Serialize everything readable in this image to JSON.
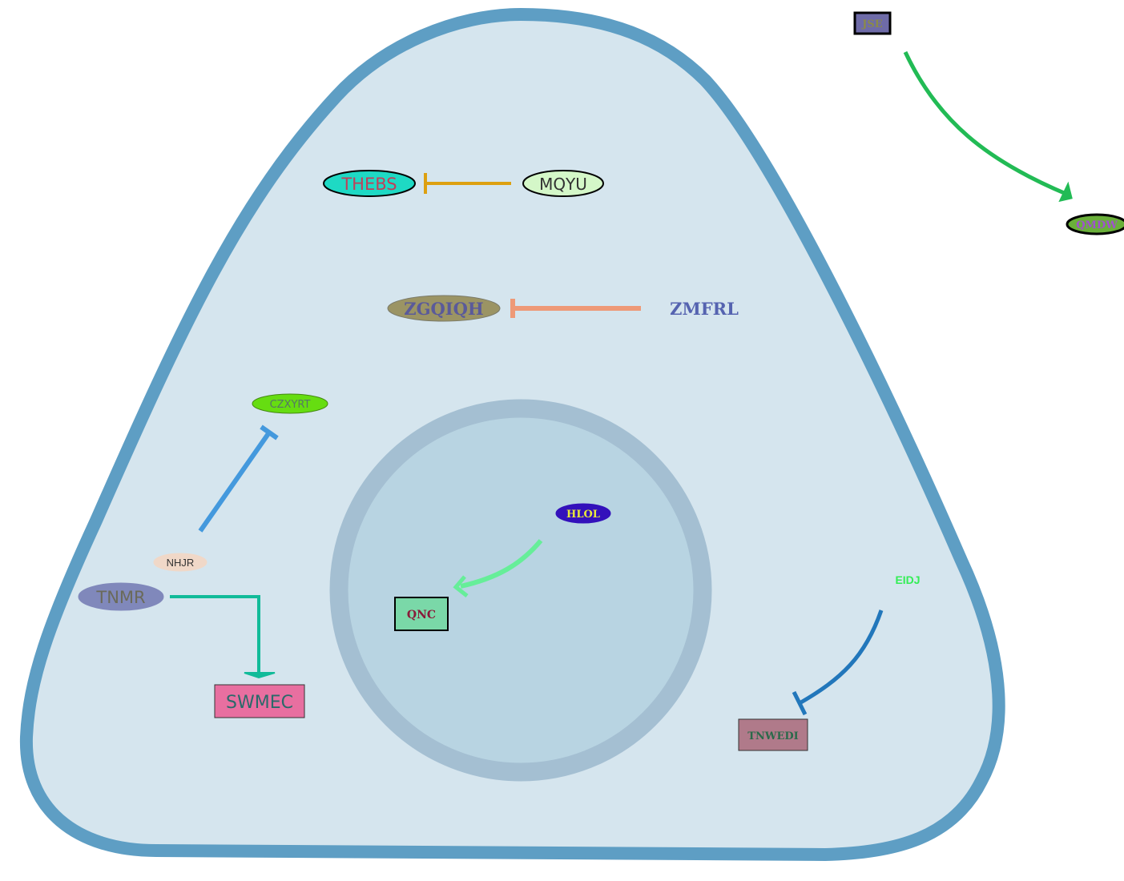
{
  "nodes": {
    "jse": {
      "label": "JSE",
      "shape": "rect",
      "fill": "#6E6BA8",
      "stroke": "#000000",
      "text_color": "#8A8A4A"
    },
    "qmdw": {
      "label": "QMDW",
      "shape": "ellipse",
      "fill": "#6AAF3A",
      "stroke": "#000000",
      "text_color": "#A050D0"
    },
    "thebs": {
      "label": "THEBS",
      "shape": "ellipse",
      "fill": "#1ED9C4",
      "stroke": "#000000",
      "text_color": "#C0405A"
    },
    "mqyu": {
      "label": "MQYU",
      "shape": "ellipse",
      "fill": "#D4F7C8",
      "stroke": "#000000",
      "text_color": "#333333"
    },
    "zgqiqh": {
      "label": "ZGQIQH",
      "shape": "ellipse",
      "fill": "#9B9464",
      "stroke": "#7A7A6A",
      "text_color": "#5A5A9A"
    },
    "zmfrl": {
      "label": "ZMFRL",
      "shape": "text",
      "text_color": "#5563B0"
    },
    "czxyrt": {
      "label": "CZXYRT",
      "shape": "ellipse",
      "fill": "#66DD11",
      "stroke": "#448811",
      "text_color": "#557766"
    },
    "hlol": {
      "label": "HLOL",
      "shape": "ellipse",
      "fill": "#3311BB",
      "stroke": "#3311BB",
      "text_color": "#E8E83A"
    },
    "qnc": {
      "label": "QNC",
      "shape": "rect",
      "fill": "#7AD8A8",
      "stroke": "#000000",
      "text_color": "#8A1A3A"
    },
    "nhjr": {
      "label": "NHJR",
      "shape": "ellipse",
      "fill": "#F0D8C8",
      "stroke": "#F0D8C8",
      "text_color": "#333333"
    },
    "tnmr": {
      "label": "TNMR",
      "shape": "ellipse",
      "fill": "#8088BB",
      "stroke": "#8088BB",
      "text_color": "#6A6A5A"
    },
    "swmec": {
      "label": "SWMEC",
      "shape": "rect",
      "fill": "#E86FA0",
      "stroke": "#333333",
      "text_color": "#2A6A6A"
    },
    "eidj": {
      "label": "EIDJ",
      "shape": "text",
      "text_color": "#33EE55"
    },
    "tnwedi": {
      "label": "TNWEDI",
      "shape": "rect",
      "fill": "#B07A8A",
      "stroke": "#333333",
      "text_color": "#2A6A4A"
    }
  },
  "edges": [
    {
      "from": "JSE",
      "to": "QMDW",
      "type": "activation",
      "color": "#22BB55"
    },
    {
      "from": "MQYU",
      "to": "THEBS",
      "type": "inhibition",
      "color": "#DDA011"
    },
    {
      "from": "ZMFRL",
      "to": "ZGQIQH",
      "type": "inhibition",
      "color": "#EE9977"
    },
    {
      "from": "NHJR",
      "to": "CZXYRT",
      "type": "inhibition",
      "color": "#4499DD"
    },
    {
      "from": "HLOL",
      "to": "QNC",
      "type": "activation",
      "color": "#66EE99"
    },
    {
      "from": "TNMR",
      "to": "SWMEC",
      "type": "activation",
      "color": "#11BB99"
    },
    {
      "from": "EIDJ",
      "to": "TNWEDI",
      "type": "inhibition",
      "color": "#2277BB"
    }
  ],
  "compartments": {
    "cell": {
      "fill": "#D5E5EE",
      "stroke": "#5E9EC4"
    },
    "nucleus": {
      "fill": "#B8D4E2",
      "stroke": "#A4BFD2"
    }
  }
}
